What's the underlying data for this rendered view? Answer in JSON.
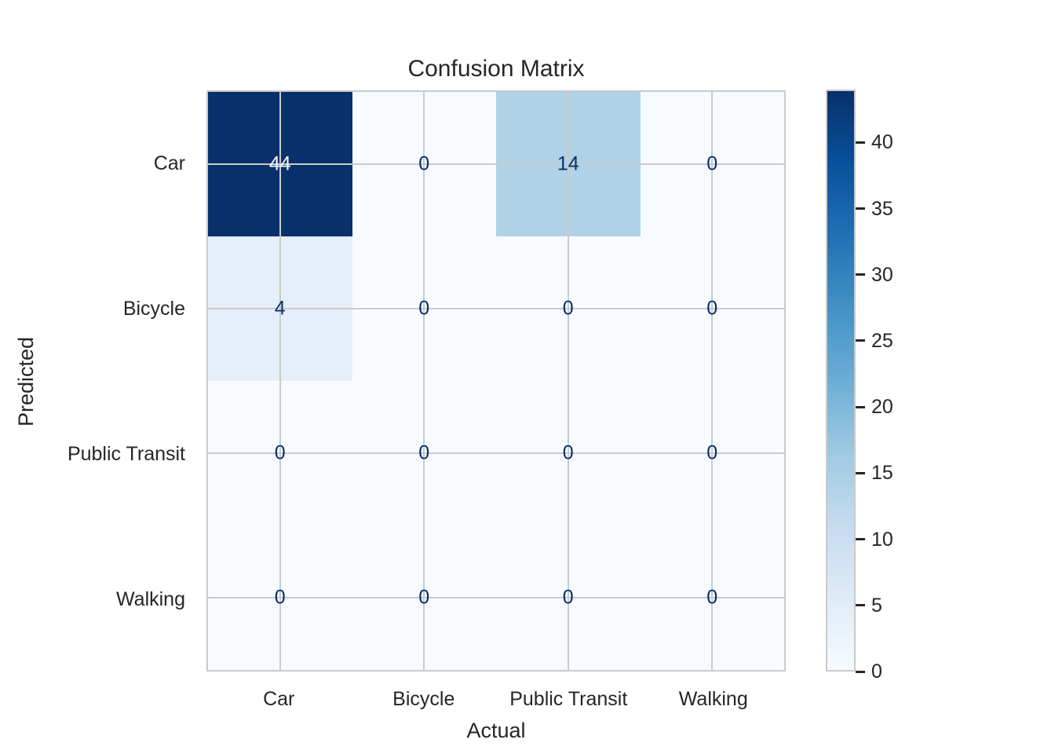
{
  "figure": {
    "background": "#ffffff"
  },
  "colors": {
    "text": "#262626",
    "grid_line": "#cacaca",
    "axes_edge": "#cacaca",
    "annotation_dark": "#08306b",
    "annotation_light": "#f7fbff",
    "colorbar_tick": "#262626"
  },
  "chart_data": {
    "type": "heatmap",
    "title": "Confusion Matrix",
    "xlabel": "Actual",
    "ylabel": "Predicted",
    "x_categories": [
      "Car",
      "Bicycle",
      "Public Transit",
      "Walking"
    ],
    "y_categories": [
      "Car",
      "Bicycle",
      "Public Transit",
      "Walking"
    ],
    "matrix": [
      [
        44,
        0,
        14,
        0
      ],
      [
        4,
        0,
        0,
        0
      ],
      [
        0,
        0,
        0,
        0
      ],
      [
        0,
        0,
        0,
        0
      ]
    ],
    "vmin": 0,
    "vmax": 44,
    "colormap": "Blues",
    "grid": true,
    "cell_colors": [
      [
        "#08306b",
        "#f7fbff",
        "#b0d2e7",
        "#f7fbff"
      ],
      [
        "#e5eff9",
        "#f7fbff",
        "#f7fbff",
        "#f7fbff"
      ],
      [
        "#f7fbff",
        "#f7fbff",
        "#f7fbff",
        "#f7fbff"
      ],
      [
        "#f7fbff",
        "#f7fbff",
        "#f7fbff",
        "#f7fbff"
      ]
    ],
    "colorbar": {
      "position": "right",
      "ticks": [
        0,
        5,
        10,
        15,
        20,
        25,
        30,
        35,
        40
      ],
      "gradient_stops": [
        {
          "value": 44,
          "color": "#08306b"
        },
        {
          "value": 38.5,
          "color": "#08519c"
        },
        {
          "value": 33,
          "color": "#2171b5"
        },
        {
          "value": 27.5,
          "color": "#4292c6"
        },
        {
          "value": 22,
          "color": "#6baed6"
        },
        {
          "value": 16.5,
          "color": "#9ecae1"
        },
        {
          "value": 11,
          "color": "#c6dbef"
        },
        {
          "value": 5.5,
          "color": "#deebf7"
        },
        {
          "value": 0,
          "color": "#f7fbff"
        }
      ]
    }
  }
}
